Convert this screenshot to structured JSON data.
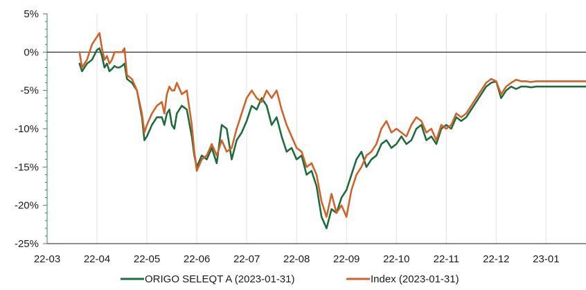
{
  "chart_data": {
    "type": "line",
    "title": "",
    "xlabel": "",
    "ylabel": "",
    "ylim": [
      -25,
      5
    ],
    "y_ticks": [
      5,
      0,
      -5,
      -10,
      -15,
      -20,
      -25
    ],
    "y_tick_labels": [
      "5%",
      "0%",
      "-5%",
      "-10%",
      "-15%",
      "-20%",
      "-25%"
    ],
    "x_tick_labels": [
      "22-03",
      "22-04",
      "22-05",
      "22-06",
      "22-07",
      "22-08",
      "22-09",
      "22-10",
      "22-11",
      "22-12",
      "23-01"
    ],
    "x_domain": [
      0,
      10.8
    ],
    "grid": "vertical",
    "legend_position": "bottom",
    "series": [
      {
        "name": "ORIGO SELEQT A (2023-01-31)",
        "color": "#1e6b3c",
        "x": [
          0.65,
          0.7,
          0.8,
          0.9,
          1.0,
          1.05,
          1.1,
          1.15,
          1.2,
          1.25,
          1.3,
          1.35,
          1.4,
          1.45,
          1.5,
          1.55,
          1.6,
          1.7,
          1.8,
          1.9,
          1.95,
          2.0,
          2.1,
          2.2,
          2.3,
          2.35,
          2.4,
          2.45,
          2.5,
          2.55,
          2.6,
          2.7,
          2.8,
          2.9,
          2.95,
          3.0,
          3.1,
          3.2,
          3.3,
          3.4,
          3.5,
          3.6,
          3.7,
          3.8,
          3.9,
          4.0,
          4.1,
          4.2,
          4.3,
          4.4,
          4.5,
          4.6,
          4.7,
          4.8,
          4.9,
          5.0,
          5.1,
          5.2,
          5.3,
          5.4,
          5.5,
          5.6,
          5.7,
          5.8,
          5.9,
          6.0,
          6.1,
          6.2,
          6.3,
          6.4,
          6.5,
          6.6,
          6.7,
          6.8,
          6.9,
          7.0,
          7.1,
          7.2,
          7.3,
          7.4,
          7.5,
          7.6,
          7.7,
          7.8,
          7.9,
          8.0,
          8.1,
          8.2,
          8.3,
          8.4,
          8.5,
          8.6,
          8.7,
          8.8,
          8.9,
          9.0,
          9.1,
          9.2,
          9.3,
          9.4,
          9.5,
          9.6,
          9.7,
          9.8,
          9.9,
          10.0,
          10.1,
          10.2,
          10.3,
          10.4,
          10.5,
          10.55,
          10.6,
          10.7,
          10.8
        ],
        "values": [
          -1.5,
          -2.5,
          -1.5,
          -1.0,
          0.3,
          0.5,
          -0.5,
          -2.0,
          -1.5,
          -2.5,
          -2.2,
          -1.8,
          -2.0,
          -2.0,
          -1.8,
          -1.5,
          -3.5,
          -4.0,
          -5.0,
          -8.5,
          -11.5,
          -11.0,
          -9.5,
          -8.5,
          -8.5,
          -9.5,
          -8.0,
          -7.5,
          -9.5,
          -10.0,
          -8.0,
          -7.0,
          -7.5,
          -11.0,
          -13.5,
          -15.0,
          -13.5,
          -14.0,
          -12.5,
          -14.5,
          -9.5,
          -10.0,
          -14.0,
          -11.5,
          -10.5,
          -9.0,
          -7.0,
          -7.5,
          -6.0,
          -7.0,
          -9.5,
          -8.5,
          -11.0,
          -13.0,
          -12.5,
          -14.0,
          -13.5,
          -16.0,
          -15.5,
          -17.5,
          -21.5,
          -23.0,
          -20.5,
          -21.0,
          -19.0,
          -18.0,
          -16.0,
          -14.0,
          -13.0,
          -15.0,
          -14.0,
          -13.5,
          -12.0,
          -11.5,
          -12.5,
          -12.0,
          -11.0,
          -12.0,
          -11.5,
          -10.0,
          -9.5,
          -11.5,
          -11.0,
          -12.0,
          -10.0,
          -9.5,
          -10.0,
          -8.5,
          -9.0,
          -8.5,
          -7.5,
          -6.5,
          -5.5,
          -4.5,
          -4.0,
          -3.8,
          -6.0,
          -5.0,
          -4.5,
          -4.8,
          -4.5,
          -4.5,
          -4.6,
          -4.5,
          -4.5,
          -4.5,
          -4.5,
          -4.5,
          -4.5,
          -4.5,
          -4.5,
          -4.5,
          -4.5,
          -4.5,
          -4.5
        ]
      },
      {
        "name": "Index (2023-01-31)",
        "color": "#d0622a",
        "x": [
          0.65,
          0.7,
          0.8,
          0.9,
          1.0,
          1.05,
          1.1,
          1.15,
          1.2,
          1.25,
          1.3,
          1.35,
          1.4,
          1.45,
          1.5,
          1.55,
          1.6,
          1.7,
          1.8,
          1.9,
          1.95,
          2.0,
          2.1,
          2.2,
          2.3,
          2.35,
          2.4,
          2.45,
          2.5,
          2.55,
          2.6,
          2.7,
          2.8,
          2.9,
          2.95,
          3.0,
          3.1,
          3.2,
          3.3,
          3.4,
          3.5,
          3.6,
          3.7,
          3.8,
          3.9,
          4.0,
          4.1,
          4.2,
          4.3,
          4.4,
          4.5,
          4.6,
          4.7,
          4.8,
          4.9,
          5.0,
          5.1,
          5.2,
          5.3,
          5.4,
          5.5,
          5.6,
          5.7,
          5.8,
          5.9,
          6.0,
          6.1,
          6.2,
          6.3,
          6.4,
          6.5,
          6.6,
          6.7,
          6.8,
          6.9,
          7.0,
          7.1,
          7.2,
          7.3,
          7.4,
          7.5,
          7.6,
          7.7,
          7.8,
          7.9,
          8.0,
          8.1,
          8.2,
          8.3,
          8.4,
          8.5,
          8.6,
          8.7,
          8.8,
          8.9,
          9.0,
          9.1,
          9.2,
          9.3,
          9.4,
          9.5,
          9.6,
          9.7,
          9.8,
          9.9,
          10.0,
          10.1,
          10.2,
          10.3,
          10.4,
          10.5,
          10.55,
          10.6,
          10.7,
          10.8
        ],
        "values": [
          0.0,
          -2.0,
          -1.0,
          1.0,
          2.0,
          2.5,
          0.5,
          -1.0,
          -0.5,
          -1.5,
          -1.0,
          0.0,
          0.0,
          0.0,
          0.0,
          0.5,
          -3.0,
          -3.5,
          -5.0,
          -8.0,
          -10.5,
          -9.5,
          -8.0,
          -7.0,
          -6.5,
          -8.0,
          -5.5,
          -4.5,
          -5.0,
          -5.0,
          -4.0,
          -5.5,
          -5.0,
          -9.5,
          -13.0,
          -15.5,
          -14.0,
          -13.5,
          -12.0,
          -13.5,
          -11.5,
          -13.0,
          -12.5,
          -10.0,
          -8.0,
          -6.0,
          -5.0,
          -6.0,
          -6.5,
          -5.0,
          -6.0,
          -5.0,
          -7.5,
          -9.5,
          -11.0,
          -12.5,
          -13.0,
          -15.0,
          -14.5,
          -16.0,
          -19.5,
          -21.5,
          -18.5,
          -21.0,
          -20.0,
          -21.5,
          -18.0,
          -16.0,
          -15.0,
          -13.5,
          -13.0,
          -12.0,
          -10.0,
          -9.0,
          -10.5,
          -10.0,
          -10.5,
          -11.0,
          -9.5,
          -8.5,
          -9.0,
          -10.5,
          -10.0,
          -11.5,
          -9.5,
          -10.0,
          -9.5,
          -8.0,
          -8.5,
          -8.0,
          -7.0,
          -6.0,
          -5.0,
          -4.0,
          -3.5,
          -3.8,
          -5.5,
          -4.5,
          -4.0,
          -3.6,
          -3.8,
          -3.8,
          -3.9,
          -3.8,
          -3.8,
          -3.8,
          -3.8,
          -3.8,
          -3.8,
          -3.8,
          -3.8,
          -3.8,
          -3.8,
          -3.8,
          -3.8
        ]
      }
    ]
  }
}
